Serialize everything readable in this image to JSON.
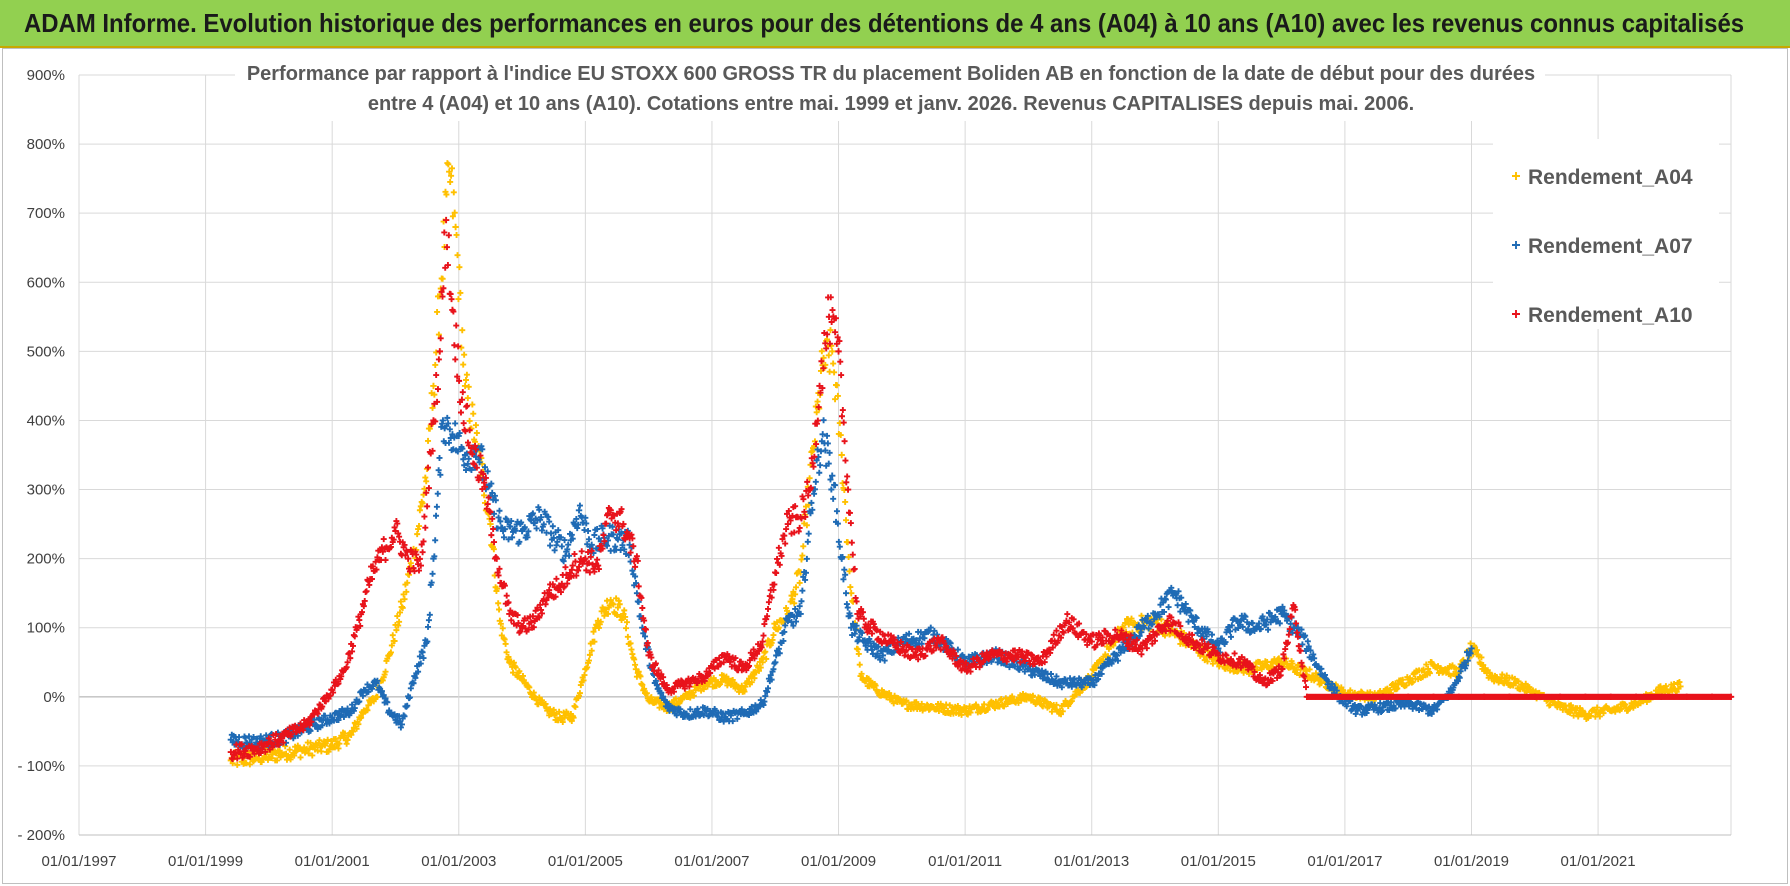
{
  "banner": {
    "title": "ADAM Informe. Evolution historique des performances en euros pour des détentions de 4 ans (A04) à 10 ans (A10) avec les revenus connus capitalisés",
    "background": "#92d050"
  },
  "chart_data": {
    "type": "scatter",
    "title_lines": [
      "Performance par rapport à l'indice EU STOXX 600 GROSS TR  du placement Boliden AB en fonction de la date de début pour des durées",
      "entre 4 (A04) et 10 ans (A10).  Cotations entre mai. 1999 et janv. 2026.  Revenus CAPITALISES depuis mai. 2006."
    ],
    "xlabel": "",
    "ylabel": "",
    "x_ticks": [
      "01/01/1997",
      "01/01/1999",
      "01/01/2001",
      "01/01/2003",
      "01/01/2005",
      "01/01/2007",
      "01/01/2009",
      "01/01/2011",
      "01/01/2013",
      "01/01/2015",
      "01/01/2017",
      "01/01/2019",
      "01/01/2021"
    ],
    "xlim": [
      1997.0,
      2023.1
    ],
    "y_ticks": [
      "900%",
      "800%",
      "700%",
      "600%",
      "500%",
      "400%",
      "300%",
      "200%",
      "100%",
      "0%",
      "- 100%",
      "- 200%"
    ],
    "ylim": [
      -200,
      900
    ],
    "grid": true,
    "legend_position": "top-right",
    "series": [
      {
        "name": "Rendement_A04",
        "color": "#ffc000",
        "points": [
          [
            1999.4,
            -92
          ],
          [
            1999.8,
            -88
          ],
          [
            2000.2,
            -82
          ],
          [
            2000.6,
            -76
          ],
          [
            2001.0,
            -70
          ],
          [
            2001.3,
            -55
          ],
          [
            2001.5,
            -20
          ],
          [
            2001.7,
            0
          ],
          [
            2001.9,
            60
          ],
          [
            2002.1,
            130
          ],
          [
            2002.3,
            210
          ],
          [
            2002.5,
            330
          ],
          [
            2002.6,
            450
          ],
          [
            2002.7,
            580
          ],
          [
            2002.85,
            760
          ],
          [
            2002.95,
            680
          ],
          [
            2003.1,
            450
          ],
          [
            2003.3,
            360
          ],
          [
            2003.5,
            250
          ],
          [
            2003.65,
            110
          ],
          [
            2003.8,
            50
          ],
          [
            2004.0,
            25
          ],
          [
            2004.2,
            0
          ],
          [
            2004.4,
            -20
          ],
          [
            2004.6,
            -30
          ],
          [
            2004.8,
            -28
          ],
          [
            2005.0,
            40
          ],
          [
            2005.2,
            110
          ],
          [
            2005.4,
            140
          ],
          [
            2005.6,
            120
          ],
          [
            2005.8,
            40
          ],
          [
            2006.0,
            -5
          ],
          [
            2006.3,
            -15
          ],
          [
            2006.6,
            0
          ],
          [
            2006.9,
            20
          ],
          [
            2007.2,
            25
          ],
          [
            2007.5,
            10
          ],
          [
            2007.8,
            50
          ],
          [
            2008.0,
            100
          ],
          [
            2008.2,
            120
          ],
          [
            2008.4,
            180
          ],
          [
            2008.6,
            360
          ],
          [
            2008.75,
            480
          ],
          [
            2008.9,
            500
          ],
          [
            2009.05,
            350
          ],
          [
            2009.2,
            150
          ],
          [
            2009.35,
            30
          ],
          [
            2009.6,
            10
          ],
          [
            2010.0,
            -10
          ],
          [
            2010.5,
            -15
          ],
          [
            2011.0,
            -20
          ],
          [
            2011.5,
            -10
          ],
          [
            2012.0,
            0
          ],
          [
            2012.5,
            -20
          ],
          [
            2013.0,
            30
          ],
          [
            2013.5,
            100
          ],
          [
            2014.0,
            110
          ],
          [
            2014.5,
            80
          ],
          [
            2015.0,
            50
          ],
          [
            2015.5,
            40
          ],
          [
            2016.0,
            50
          ],
          [
            2016.5,
            30
          ],
          [
            2017.0,
            5
          ],
          [
            2017.5,
            0
          ],
          [
            2018.0,
            25
          ],
          [
            2018.4,
            45
          ],
          [
            2018.8,
            35
          ],
          [
            2019.0,
            70
          ],
          [
            2019.3,
            30
          ],
          [
            2019.7,
            20
          ],
          [
            2020.0,
            5
          ],
          [
            2020.4,
            -15
          ],
          [
            2020.8,
            -25
          ],
          [
            2021.2,
            -20
          ],
          [
            2021.6,
            -10
          ],
          [
            2022.0,
            10
          ],
          [
            2022.3,
            15
          ]
        ]
      },
      {
        "name": "Rendement_A07",
        "color": "#1f6bb5",
        "points": [
          [
            1999.4,
            -62
          ],
          [
            1999.8,
            -66
          ],
          [
            2000.2,
            -60
          ],
          [
            2000.6,
            -45
          ],
          [
            2001.0,
            -30
          ],
          [
            2001.3,
            -20
          ],
          [
            2001.5,
            10
          ],
          [
            2001.7,
            20
          ],
          [
            2001.9,
            -20
          ],
          [
            2002.1,
            -40
          ],
          [
            2002.3,
            30
          ],
          [
            2002.5,
            80
          ],
          [
            2002.6,
            200
          ],
          [
            2002.75,
            400
          ],
          [
            2002.9,
            380
          ],
          [
            2003.1,
            350
          ],
          [
            2003.3,
            360
          ],
          [
            2003.5,
            290
          ],
          [
            2003.7,
            240
          ],
          [
            2004.0,
            240
          ],
          [
            2004.3,
            260
          ],
          [
            2004.5,
            230
          ],
          [
            2004.7,
            210
          ],
          [
            2004.9,
            270
          ],
          [
            2005.1,
            220
          ],
          [
            2005.3,
            230
          ],
          [
            2005.5,
            230
          ],
          [
            2005.7,
            220
          ],
          [
            2005.9,
            100
          ],
          [
            2006.1,
            20
          ],
          [
            2006.3,
            -15
          ],
          [
            2006.6,
            -25
          ],
          [
            2006.9,
            -20
          ],
          [
            2007.2,
            -30
          ],
          [
            2007.5,
            -25
          ],
          [
            2007.8,
            -10
          ],
          [
            2008.0,
            50
          ],
          [
            2008.2,
            110
          ],
          [
            2008.4,
            120
          ],
          [
            2008.6,
            300
          ],
          [
            2008.75,
            380
          ],
          [
            2008.9,
            320
          ],
          [
            2009.05,
            200
          ],
          [
            2009.2,
            100
          ],
          [
            2009.4,
            80
          ],
          [
            2009.7,
            60
          ],
          [
            2010.0,
            80
          ],
          [
            2010.5,
            90
          ],
          [
            2011.0,
            50
          ],
          [
            2011.5,
            60
          ],
          [
            2012.0,
            40
          ],
          [
            2012.5,
            20
          ],
          [
            2013.0,
            20
          ],
          [
            2013.3,
            50
          ],
          [
            2013.6,
            80
          ],
          [
            2014.0,
            120
          ],
          [
            2014.3,
            150
          ],
          [
            2014.6,
            110
          ],
          [
            2015.0,
            70
          ],
          [
            2015.3,
            110
          ],
          [
            2015.6,
            100
          ],
          [
            2016.0,
            120
          ],
          [
            2016.3,
            90
          ],
          [
            2016.6,
            40
          ],
          [
            2016.9,
            0
          ],
          [
            2017.2,
            -20
          ],
          [
            2017.6,
            -15
          ],
          [
            2018.0,
            -10
          ],
          [
            2018.4,
            -20
          ],
          [
            2018.7,
            10
          ],
          [
            2019.0,
            70
          ]
        ]
      },
      {
        "name": "Rendement_A10",
        "color": "#e8131b",
        "points": [
          [
            1999.4,
            -80
          ],
          [
            1999.8,
            -75
          ],
          [
            2000.2,
            -60
          ],
          [
            2000.6,
            -40
          ],
          [
            2001.0,
            10
          ],
          [
            2001.2,
            40
          ],
          [
            2001.4,
            100
          ],
          [
            2001.6,
            170
          ],
          [
            2001.8,
            210
          ],
          [
            2002.0,
            240
          ],
          [
            2002.2,
            200
          ],
          [
            2002.4,
            190
          ],
          [
            2002.6,
            400
          ],
          [
            2002.7,
            500
          ],
          [
            2002.8,
            690
          ],
          [
            2002.9,
            560
          ],
          [
            2003.05,
            430
          ],
          [
            2003.2,
            360
          ],
          [
            2003.4,
            310
          ],
          [
            2003.6,
            200
          ],
          [
            2003.8,
            120
          ],
          [
            2004.0,
            100
          ],
          [
            2004.2,
            110
          ],
          [
            2004.4,
            150
          ],
          [
            2004.6,
            160
          ],
          [
            2004.8,
            190
          ],
          [
            2005.0,
            200
          ],
          [
            2005.2,
            190
          ],
          [
            2005.4,
            270
          ],
          [
            2005.6,
            250
          ],
          [
            2005.8,
            200
          ],
          [
            2006.0,
            60
          ],
          [
            2006.3,
            10
          ],
          [
            2006.6,
            20
          ],
          [
            2006.9,
            30
          ],
          [
            2007.2,
            60
          ],
          [
            2007.5,
            40
          ],
          [
            2007.8,
            80
          ],
          [
            2008.0,
            180
          ],
          [
            2008.2,
            250
          ],
          [
            2008.4,
            260
          ],
          [
            2008.55,
            300
          ],
          [
            2008.7,
            450
          ],
          [
            2008.85,
            550
          ],
          [
            2009.0,
            500
          ],
          [
            2009.15,
            300
          ],
          [
            2009.3,
            120
          ],
          [
            2009.5,
            100
          ],
          [
            2009.8,
            80
          ],
          [
            2010.2,
            60
          ],
          [
            2010.6,
            80
          ],
          [
            2011.0,
            40
          ],
          [
            2011.4,
            60
          ],
          [
            2011.8,
            60
          ],
          [
            2012.2,
            50
          ],
          [
            2012.6,
            110
          ],
          [
            2013.0,
            80
          ],
          [
            2013.4,
            90
          ],
          [
            2013.8,
            70
          ],
          [
            2014.2,
            110
          ],
          [
            2014.6,
            80
          ],
          [
            2015.0,
            60
          ],
          [
            2015.4,
            50
          ],
          [
            2015.7,
            20
          ],
          [
            2016.0,
            40
          ],
          [
            2016.2,
            130
          ],
          [
            2016.4,
            0
          ],
          [
            2016.8,
            0
          ],
          [
            2017.2,
            0
          ],
          [
            2017.6,
            0
          ],
          [
            2018.0,
            0
          ],
          [
            2018.4,
            0
          ],
          [
            2018.8,
            0
          ],
          [
            2019.2,
            0
          ],
          [
            2019.6,
            0
          ],
          [
            2020.0,
            0
          ],
          [
            2020.4,
            0
          ],
          [
            2020.8,
            0
          ],
          [
            2021.2,
            0
          ],
          [
            2021.6,
            0
          ],
          [
            2022.0,
            0
          ],
          [
            2022.4,
            0
          ],
          [
            2022.8,
            0
          ],
          [
            2023.1,
            0
          ]
        ]
      }
    ]
  }
}
